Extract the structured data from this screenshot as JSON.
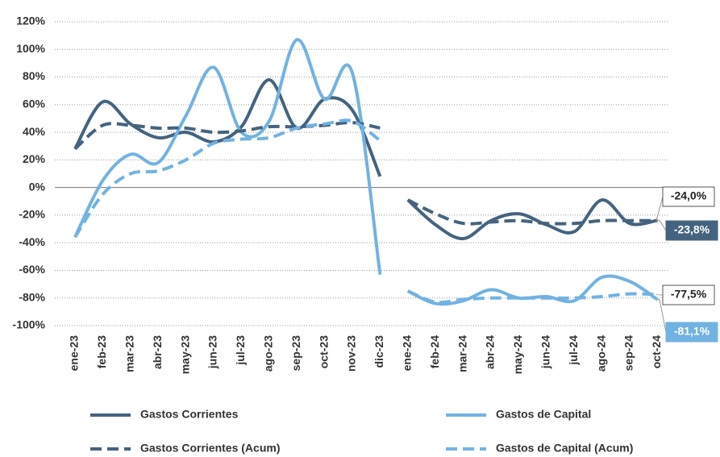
{
  "chart_data": {
    "type": "line",
    "categories": [
      "ene-23",
      "feb-23",
      "mar-23",
      "abr-23",
      "may-23",
      "jun-23",
      "jul-23",
      "ago-23",
      "sep-23",
      "oct-23",
      "nov-23",
      "dic-23",
      "ene-24",
      "feb-24",
      "mar-24",
      "abr-24",
      "may-24",
      "jun-24",
      "jul-24",
      "ago-24",
      "sep-24",
      "oct-24"
    ],
    "break_after": "dic-23",
    "ylim": [
      -100,
      120
    ],
    "yticks": [
      {
        "value": -100,
        "label": "-100%"
      },
      {
        "value": -80,
        "label": "-80%"
      },
      {
        "value": -60,
        "label": "-60%"
      },
      {
        "value": -40,
        "label": "-40%"
      },
      {
        "value": -20,
        "label": "-20%"
      },
      {
        "value": 0,
        "label": "0%"
      },
      {
        "value": 20,
        "label": "20%"
      },
      {
        "value": 40,
        "label": "40%"
      },
      {
        "value": 60,
        "label": "60%"
      },
      {
        "value": 80,
        "label": "80%"
      },
      {
        "value": 100,
        "label": "100%"
      },
      {
        "value": 120,
        "label": "120%"
      }
    ],
    "grid": true,
    "series": [
      {
        "name": "Gastos Corrientes",
        "color": "#44637f",
        "dashed": false,
        "values": [
          28,
          62,
          46,
          36,
          40,
          33,
          44,
          78,
          43,
          64,
          56,
          8,
          -9,
          -27,
          -37,
          -24,
          -19,
          -27,
          -32,
          -9,
          -26,
          -23.8
        ],
        "value_labels": [
          null,
          null,
          null,
          null,
          null,
          null,
          null,
          null,
          null,
          null,
          null,
          null,
          null,
          null,
          null,
          null,
          null,
          null,
          null,
          null,
          null,
          "-23,8%"
        ]
      },
      {
        "name": "Gastos de Capital",
        "color": "#72b2e2",
        "dashed": false,
        "values": [
          -36,
          5,
          24,
          18,
          52,
          87,
          40,
          48,
          107,
          64,
          83,
          -63,
          -75,
          -84,
          -82,
          -74,
          -80,
          -79,
          -82,
          -65,
          -68,
          -81.1
        ],
        "value_labels": [
          null,
          null,
          null,
          null,
          null,
          null,
          null,
          null,
          null,
          null,
          null,
          null,
          null,
          null,
          null,
          null,
          null,
          null,
          null,
          null,
          null,
          "-81,1%"
        ]
      },
      {
        "name": "Gastos Corrientes (Acum)",
        "color": "#44637f",
        "dashed": true,
        "values": [
          28,
          45,
          45,
          43,
          43,
          40,
          41,
          44,
          44,
          45,
          47,
          43,
          -9,
          -19,
          -26,
          -25,
          -24,
          -26,
          -26,
          -24,
          -24,
          -24.0
        ],
        "value_labels": [
          null,
          null,
          null,
          null,
          null,
          null,
          null,
          null,
          null,
          null,
          null,
          null,
          null,
          null,
          null,
          null,
          null,
          null,
          null,
          null,
          null,
          "-24,0%"
        ]
      },
      {
        "name": "Gastos de Capital (Acum)",
        "color": "#72b2e2",
        "dashed": true,
        "values": [
          -36,
          -5,
          10,
          12,
          20,
          32,
          35,
          36,
          43,
          46,
          48,
          34,
          -75,
          -83,
          -81,
          -80,
          -80,
          -80,
          -80,
          -79,
          -77,
          -77.5
        ],
        "value_labels": [
          null,
          null,
          null,
          null,
          null,
          null,
          null,
          null,
          null,
          null,
          null,
          null,
          null,
          null,
          null,
          null,
          null,
          null,
          null,
          null,
          null,
          "-77,5%"
        ]
      }
    ]
  }
}
